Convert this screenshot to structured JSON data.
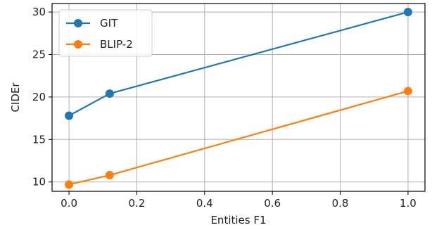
{
  "chart_data": {
    "type": "line",
    "xlabel": "Entities F1",
    "ylabel": "CIDEr",
    "xlim": [
      -0.05,
      1.05
    ],
    "ylim": [
      8.9,
      31.0
    ],
    "xticks": [
      0.0,
      0.2,
      0.4,
      0.6,
      0.8,
      1.0
    ],
    "xtick_labels": [
      "0.0",
      "0.2",
      "0.4",
      "0.6",
      "0.8",
      "1.0"
    ],
    "yticks": [
      10,
      15,
      20,
      25,
      30
    ],
    "ytick_labels": [
      "10",
      "15",
      "20",
      "25",
      "30"
    ],
    "grid": true,
    "legend_position": "top-left",
    "series": [
      {
        "name": "GIT",
        "color": "#1f77b4",
        "x": [
          0.0,
          0.12,
          1.0
        ],
        "y": [
          17.8,
          20.4,
          30.0
        ]
      },
      {
        "name": "BLIP-2",
        "color": "#ff7f0e",
        "x": [
          0.0,
          0.12,
          1.0
        ],
        "y": [
          9.7,
          10.8,
          20.7
        ]
      }
    ]
  }
}
